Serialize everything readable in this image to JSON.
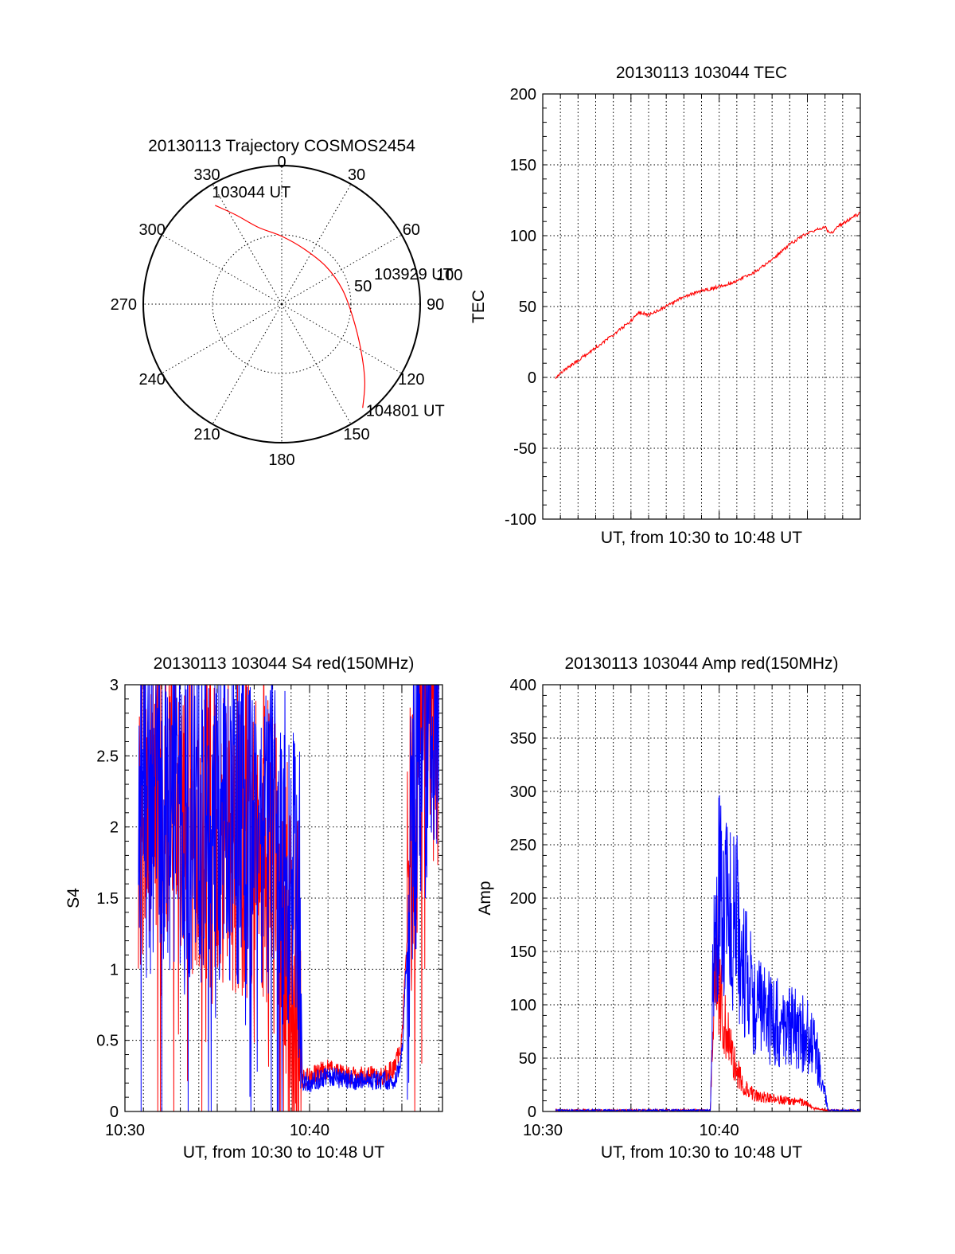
{
  "chart_data": [
    {
      "id": "trajectory",
      "type": "polar",
      "title": "20130113 Trajectory COSMOS2454",
      "azimuth_labels": [
        "0",
        "30",
        "60",
        "90",
        "120",
        "150",
        "180",
        "210",
        "240",
        "270",
        "300",
        "330"
      ],
      "radial_labels": [
        "50",
        "100"
      ],
      "series": [
        {
          "color": "#ff0000",
          "points": [
            {
              "az": 326,
              "r": 86
            },
            {
              "az": 333,
              "r": 72
            },
            {
              "az": 343,
              "r": 58
            },
            {
              "az": 0,
              "r": 49
            },
            {
              "az": 22,
              "r": 43
            },
            {
              "az": 50,
              "r": 42
            },
            {
              "az": 76,
              "r": 45
            },
            {
              "az": 100,
              "r": 52
            },
            {
              "az": 120,
              "r": 66
            },
            {
              "az": 133,
              "r": 82
            },
            {
              "az": 142,
              "r": 95
            }
          ]
        }
      ],
      "annotations": [
        {
          "text": "103044 UT",
          "az": 326,
          "r": 86
        },
        {
          "text": "103929 UT",
          "az": 76,
          "r": 45
        },
        {
          "text": "104801 UT",
          "az": 142,
          "r": 95
        }
      ]
    },
    {
      "id": "tec",
      "type": "line",
      "title": "20130113 103044 TEC",
      "xlabel": "UT, from 10:30 to 10:48 UT",
      "ylabel": "TEC",
      "xlim": [
        0,
        18
      ],
      "ylim": [
        -100,
        200
      ],
      "yticks": [
        -100,
        -50,
        0,
        50,
        100,
        150,
        200
      ],
      "xticks": [],
      "grid": true,
      "series": [
        {
          "color": "#ff0000",
          "x": [
            0.73,
            1.0,
            2.0,
            3.0,
            4.0,
            5.0,
            5.5,
            6.0,
            7.0,
            8.0,
            9.0,
            10.0,
            11.0,
            12.0,
            13.0,
            14.0,
            15.0,
            16.0,
            16.3,
            16.8,
            17.2,
            18.0
          ],
          "y": [
            0,
            3,
            12,
            21,
            30,
            40,
            46,
            44,
            50,
            57,
            61,
            64,
            68,
            74,
            83,
            94,
            102,
            106,
            101,
            107,
            110,
            116
          ]
        }
      ]
    },
    {
      "id": "s4",
      "type": "line",
      "title": "20130113 103044 S4 red(150MHz)",
      "xlabel": "UT, from 10:30 to 10:48 UT",
      "ylabel": "S4",
      "xlim": [
        0,
        17.2
      ],
      "ylim": [
        0,
        3
      ],
      "yticks": [
        "0",
        "0.5",
        "1",
        "1.5",
        "2",
        "2.5",
        "3"
      ],
      "xticks": [
        {
          "value": 0,
          "label": "10:30"
        },
        {
          "value": 10,
          "label": "10:40"
        }
      ],
      "grid": true,
      "series": [
        {
          "color": "#ff0000",
          "x": [
            0.73,
            2.0,
            4.0,
            6.0,
            7.5,
            8.0,
            8.5,
            9.0,
            9.3,
            9.5,
            9.6,
            10.0,
            11.0,
            12.0,
            13.0,
            14.0,
            14.6,
            15.0,
            15.3,
            15.6,
            16.0,
            17.0
          ],
          "y": [
            2.2,
            2.3,
            2.1,
            2.0,
            1.9,
            1.6,
            1.4,
            1.2,
            0.9,
            0.7,
            0.22,
            0.25,
            0.3,
            0.25,
            0.25,
            0.25,
            0.3,
            0.5,
            1.3,
            2.0,
            2.8,
            2.9
          ]
        },
        {
          "color": "#0000ff",
          "x": [
            0.73,
            2.0,
            4.0,
            6.0,
            7.5,
            8.0,
            8.5,
            9.0,
            9.3,
            9.5,
            9.6,
            10.0,
            11.0,
            12.0,
            13.0,
            14.0,
            14.6,
            15.0,
            15.3,
            15.6,
            16.0,
            17.0
          ],
          "y": [
            2.1,
            2.2,
            2.1,
            2.1,
            2.0,
            1.9,
            1.8,
            1.7,
            1.6,
            1.5,
            0.22,
            0.2,
            0.25,
            0.22,
            0.22,
            0.22,
            0.22,
            0.4,
            1.2,
            2.0,
            2.6,
            2.9
          ]
        }
      ]
    },
    {
      "id": "amp",
      "type": "line",
      "title": "20130113 103044 Amp red(150MHz)",
      "xlabel": "UT, from 10:30 to 10:48 UT",
      "ylabel": "Amp",
      "xlim": [
        0,
        18
      ],
      "ylim": [
        0,
        400
      ],
      "yticks": [
        "0",
        "50",
        "100",
        "150",
        "200",
        "250",
        "300",
        "350",
        "400"
      ],
      "xticks": [
        {
          "value": 0,
          "label": "10:30"
        },
        {
          "value": 10,
          "label": "10:40"
        }
      ],
      "grid": true,
      "series": [
        {
          "color": "#ff0000",
          "x": [
            0.73,
            9.5,
            9.7,
            9.9,
            10.0,
            10.3,
            10.6,
            11.0,
            11.5,
            12.0,
            13.0,
            14.0,
            15.0,
            15.4,
            16.0,
            18.0
          ],
          "y": [
            0,
            0,
            110,
            150,
            110,
            85,
            60,
            38,
            22,
            15,
            12,
            10,
            8,
            2,
            0,
            0
          ]
        },
        {
          "color": "#0000ff",
          "x": [
            0.73,
            9.5,
            9.7,
            10.0,
            10.5,
            11.0,
            11.5,
            12.0,
            13.0,
            14.0,
            15.0,
            15.5,
            15.8,
            16.2,
            18.0
          ],
          "y": [
            0,
            0,
            170,
            200,
            180,
            175,
            130,
            100,
            85,
            80,
            70,
            55,
            30,
            0,
            0
          ]
        }
      ]
    }
  ]
}
